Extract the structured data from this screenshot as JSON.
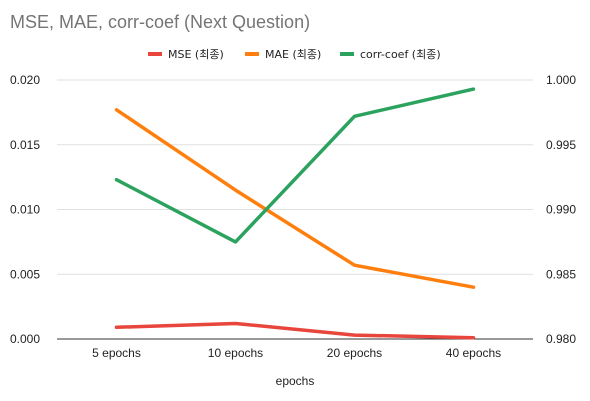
{
  "chart_data": {
    "type": "line",
    "title": "MSE, MAE, corr-coef (Next Question)",
    "xlabel": "epochs",
    "categories": [
      "5 epochs",
      "10 epochs",
      "20 epochs",
      "40 epochs"
    ],
    "left_axis": {
      "ylim": [
        0,
        0.02
      ],
      "ticks": [
        "0.000",
        "0.005",
        "0.010",
        "0.015",
        "0.020"
      ],
      "tick_values": [
        0,
        0.005,
        0.01,
        0.015,
        0.02
      ]
    },
    "right_axis": {
      "ylim": [
        0.98,
        1.0
      ],
      "ticks": [
        "0.980",
        "0.985",
        "0.990",
        "0.995",
        "1.000"
      ],
      "tick_values": [
        0.98,
        0.985,
        0.99,
        0.995,
        1.0
      ]
    },
    "series": [
      {
        "name": "MSE (최종)",
        "axis": "left",
        "color": "#e8453c",
        "values": [
          0.0009,
          0.0012,
          0.0003,
          0.0001
        ]
      },
      {
        "name": "MAE (최종)",
        "axis": "left",
        "color": "#ff7f0e",
        "values": [
          0.0177,
          0.0115,
          0.0057,
          0.004
        ]
      },
      {
        "name": "corr-coef (최종)",
        "axis": "right",
        "color": "#2ca25f",
        "values": [
          0.9923,
          0.9875,
          0.9972,
          0.9993
        ]
      }
    ],
    "grid": true,
    "legend_position": "top"
  }
}
